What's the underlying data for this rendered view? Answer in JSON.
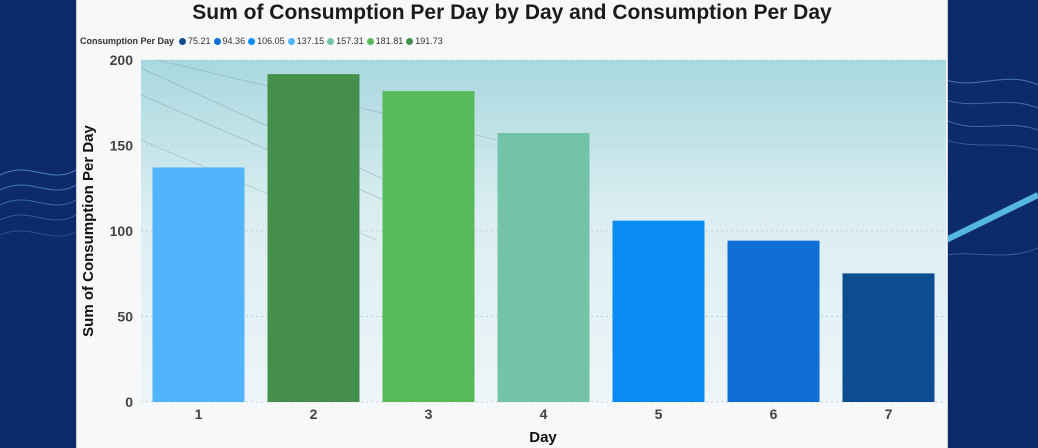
{
  "chart_data": {
    "type": "bar",
    "title": "Sum of Consumption Per Day by Day and Consumption Per Day",
    "xlabel": "Day",
    "ylabel": "Sum of Consumption Per Day",
    "legend_title": "Consumption Per Day",
    "legend_position": "top-left",
    "categories": [
      "1",
      "2",
      "3",
      "4",
      "5",
      "6",
      "7"
    ],
    "values": [
      137.15,
      191.73,
      181.81,
      157.31,
      106.05,
      94.36,
      75.21
    ],
    "colors": [
      "#52b4fa",
      "#458f4c",
      "#58b959",
      "#73c3a8",
      "#0a8bf4",
      "#0f6fd6",
      "#0b4d8f"
    ],
    "ylim": [
      0,
      200
    ],
    "yticks": [
      0,
      50,
      100,
      150,
      200
    ],
    "legend": [
      {
        "label": "75.21",
        "color": "#0b4d8f"
      },
      {
        "label": "94.36",
        "color": "#0f6fd6"
      },
      {
        "label": "106.05",
        "color": "#0a8bf4"
      },
      {
        "label": "137.15",
        "color": "#52b4fa"
      },
      {
        "label": "157.31",
        "color": "#73c3a8"
      },
      {
        "label": "181.81",
        "color": "#58b959"
      },
      {
        "label": "191.73",
        "color": "#458f4c"
      }
    ],
    "grid": true
  }
}
